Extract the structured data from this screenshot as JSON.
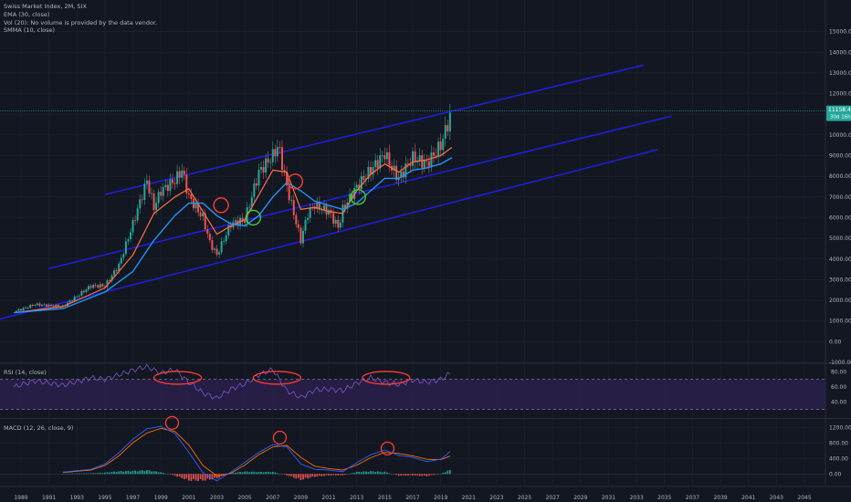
{
  "header": {
    "symbol_line": "Swiss Market Index, 2M, SIX",
    "indicators": [
      "EMA (30, close)",
      "Vol (20): No volume is provided by the data vendor.",
      "SMMA (10, close)"
    ]
  },
  "price_badge": {
    "price": "11158.45",
    "countdown": "30d 16h",
    "color": "#26a69a"
  },
  "colors": {
    "background": "#131722",
    "grid": "#1f2533",
    "up": "#26a69a",
    "down": "#ef5350",
    "ema": "#2196f3",
    "smma": "#ff7043",
    "channel": "#1f1fd6",
    "rsi": "#7e57c2",
    "rsi_band": "#2a1f4a",
    "macd_line": "#2962ff",
    "signal_line": "#ff6d00",
    "circle_red": "#ff3b30",
    "circle_green": "#3ecf2f"
  },
  "chart_data": [
    {
      "type": "line",
      "title": "Swiss Market Index, 2M, SIX",
      "x": [
        1988.5,
        1990,
        1992,
        1993,
        1994,
        1995,
        1996,
        1997,
        1998,
        1998.5,
        1999,
        2000,
        2000.5,
        2001,
        2001.5,
        2002,
        2002.5,
        2003,
        2004,
        2005,
        2006,
        2007,
        2007.4,
        2008,
        2008.5,
        2009,
        2009.5,
        2010,
        2011,
        2011.7,
        2012,
        2013,
        2014,
        2015,
        2015.5,
        2016,
        2017,
        2018,
        2019,
        2019.8
      ],
      "y": [
        1450,
        1800,
        1700,
        2200,
        2700,
        2700,
        3700,
        5700,
        7800,
        6500,
        7300,
        7800,
        8300,
        7000,
        6500,
        6000,
        4800,
        4200,
        5700,
        5900,
        8200,
        9000,
        9500,
        7500,
        6200,
        4900,
        6200,
        6600,
        6300,
        5500,
        6400,
        7500,
        8300,
        9100,
        8400,
        7900,
        8900,
        8600,
        9500,
        11158.45
      ],
      "series_overlays": [
        {
          "name": "EMA (30, close)",
          "x": [
            1988.5,
            1992,
            1995,
            1997,
            1998.5,
            2000,
            2001,
            2002,
            2003,
            2004,
            2005,
            2006,
            2007,
            2008,
            2009,
            2010,
            2011,
            2012,
            2013,
            2014,
            2015,
            2016,
            2017,
            2018,
            2019,
            2019.8
          ],
          "y": [
            1400,
            1600,
            2400,
            3400,
            4900,
            6100,
            6700,
            6700,
            6100,
            5700,
            5600,
            6100,
            7000,
            7700,
            7300,
            6800,
            6600,
            6400,
            6700,
            7300,
            7900,
            7900,
            8300,
            8400,
            8600,
            8900
          ]
        },
        {
          "name": "SMMA (10, close)",
          "x": [
            1988.5,
            1992,
            1995,
            1997,
            1998.5,
            2000,
            2001,
            2002,
            2003,
            2004,
            2005,
            2006,
            2007,
            2008,
            2009,
            2010,
            2011,
            2012,
            2013,
            2014,
            2015,
            2016,
            2017,
            2018,
            2019,
            2019.8
          ],
          "y": [
            1400,
            1700,
            2600,
            4200,
            6200,
            7000,
            7400,
            6300,
            5200,
            5600,
            5900,
            7100,
            8300,
            8200,
            6400,
            6500,
            6300,
            6200,
            7300,
            8100,
            8600,
            8200,
            8700,
            8800,
            9000,
            9400
          ]
        }
      ],
      "channel_lines": [
        {
          "x": [
            1987,
            2034.5
          ],
          "y": [
            1010,
            9290
          ]
        },
        {
          "x": [
            1991,
            2035.5
          ],
          "y": [
            3540,
            10910
          ]
        },
        {
          "x": [
            1995,
            2033.5
          ],
          "y": [
            7120,
            13380
          ]
        }
      ],
      "annotations": [
        {
          "shape": "circle",
          "color": "red",
          "x": 2003.3,
          "y": 6600
        },
        {
          "shape": "circle",
          "color": "green",
          "x": 2005.6,
          "y": 6000
        },
        {
          "shape": "circle",
          "color": "red",
          "x": 2008.6,
          "y": 7750
        },
        {
          "shape": "circle",
          "color": "green",
          "x": 2013.1,
          "y": 7000
        }
      ],
      "ylim": [
        -1000,
        16000
      ],
      "ytick_labels": [
        "-1000.00",
        "0.00",
        "1000.00",
        "2000.00",
        "3000.00",
        "4000.00",
        "5000.00",
        "6000.00",
        "7000.00",
        "8000.00",
        "9000.00",
        "10000.00",
        "11000.00",
        "12000.00",
        "13000.00",
        "14000.00",
        "15000.00"
      ],
      "xlim": [
        1987.5,
        2046.5
      ],
      "xtick_labels": [
        "1989",
        "1991",
        "1993",
        "1995",
        "1997",
        "1999",
        "2001",
        "2003",
        "2005",
        "2007",
        "2009",
        "2011",
        "2013",
        "2015",
        "2017",
        "2019",
        "2021",
        "2023",
        "2025",
        "2027",
        "2029",
        "2031",
        "2033",
        "2035",
        "2037",
        "2039",
        "2041",
        "2043",
        "2045"
      ],
      "grid": true
    },
    {
      "type": "line",
      "title": "RSI (14, close)",
      "x": [
        1988.5,
        1990,
        1992,
        1994,
        1995,
        1997,
        1998,
        1999,
        2000,
        2001,
        2002,
        2003,
        2004,
        2005,
        2006,
        2007,
        2008,
        2009,
        2010,
        2011,
        2012,
        2013,
        2014,
        2015,
        2016,
        2017,
        2018,
        2019,
        2019.8
      ],
      "y": [
        60,
        68,
        62,
        72,
        70,
        82,
        87,
        78,
        83,
        66,
        52,
        45,
        57,
        64,
        76,
        83,
        55,
        46,
        56,
        57,
        55,
        65,
        72,
        66,
        63,
        69,
        66,
        70,
        79
      ],
      "band": [
        30,
        70
      ],
      "levels": [
        30,
        70
      ],
      "ylim": [
        20,
        90
      ],
      "ytick_labels": [
        "80.00",
        "60.00",
        "40.00"
      ],
      "annotations": [
        {
          "shape": "ellipse",
          "color": "red",
          "x": 2000.2,
          "y": 72
        },
        {
          "shape": "ellipse",
          "color": "red",
          "x": 2007.3,
          "y": 72
        },
        {
          "shape": "ellipse",
          "color": "red",
          "x": 2015.1,
          "y": 72
        }
      ]
    },
    {
      "type": "bar",
      "title": "MACD (12, 26, close, 9)",
      "x": [
        1992,
        1994,
        1995,
        1996,
        1997,
        1998,
        1999,
        2000,
        2001,
        2002,
        2003,
        2004,
        2005,
        2006,
        2007,
        2008,
        2009,
        2010,
        2011,
        2012,
        2013,
        2014,
        2015,
        2016,
        2017,
        2018,
        2019,
        2019.8
      ],
      "series": [
        {
          "name": "MACD",
          "values": [
            50,
            120,
            260,
            550,
            900,
            1170,
            1230,
            1050,
            560,
            30,
            -180,
            50,
            300,
            560,
            760,
            700,
            260,
            120,
            100,
            60,
            290,
            500,
            620,
            480,
            430,
            320,
            380,
            620
          ]
        },
        {
          "name": "Signal",
          "values": [
            40,
            100,
            220,
            470,
            810,
            1060,
            1180,
            1100,
            750,
            220,
            -50,
            20,
            230,
            500,
            700,
            740,
            430,
            200,
            140,
            100,
            230,
            420,
            560,
            530,
            470,
            380,
            370,
            480
          ]
        },
        {
          "name": "Histogram",
          "values": [
            10,
            20,
            40,
            80,
            90,
            110,
            50,
            -50,
            -190,
            -190,
            -130,
            30,
            70,
            60,
            60,
            -40,
            -170,
            -80,
            -40,
            -40,
            60,
            80,
            60,
            -50,
            -40,
            -60,
            10,
            140
          ]
        }
      ],
      "ylim": [
        -300,
        1400
      ],
      "ytick_labels": [
        "1200.00",
        "800.00",
        "400.00",
        "0.00"
      ],
      "annotations": [
        {
          "shape": "circle",
          "color": "red",
          "x": 1999.8,
          "y": 1320
        },
        {
          "shape": "circle",
          "color": "red",
          "x": 2007.5,
          "y": 940
        },
        {
          "shape": "circle",
          "color": "red",
          "x": 2015.2,
          "y": 660
        }
      ]
    }
  ]
}
